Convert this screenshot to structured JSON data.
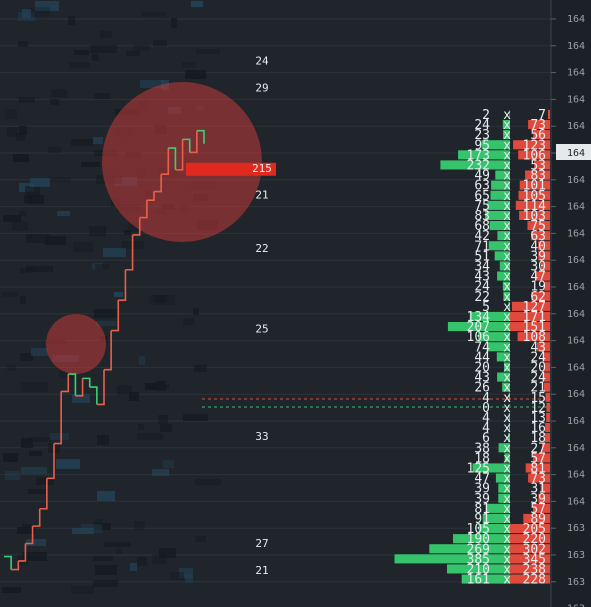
{
  "chart_data": {
    "type": "line",
    "description_note": "",
    "price_axis": {
      "labels": [
        "164",
        "164",
        "164",
        "164",
        "164",
        "164",
        "164",
        "164",
        "164",
        "164",
        "164",
        "164",
        "164",
        "164",
        "164",
        "164",
        "164",
        "164",
        "164",
        "163",
        "163",
        "163",
        "163"
      ],
      "highlighted_label": "164",
      "highlighted_row": 5
    },
    "trade_count_labels": [
      {
        "row": 0,
        "text": "24"
      },
      {
        "row": 1,
        "text": "29"
      },
      {
        "row": 4,
        "text": "215",
        "highlight": true
      },
      {
        "row": 5,
        "text": "21"
      },
      {
        "row": 7,
        "text": "22"
      },
      {
        "row": 10,
        "text": "25"
      },
      {
        "row": 14,
        "text": "33"
      },
      {
        "row": 18,
        "text": "27"
      },
      {
        "row": 19,
        "text": "21"
      }
    ],
    "depth_rows": [
      {
        "bid": "2",
        "ask": "7"
      },
      {
        "bid": "24",
        "ask": "73"
      },
      {
        "bid": "23",
        "ask": "56"
      },
      {
        "bid": "95",
        "ask": "123"
      },
      {
        "bid": "173",
        "ask": "106"
      },
      {
        "bid": "232",
        "ask": "53"
      },
      {
        "bid": "49",
        "ask": "83"
      },
      {
        "bid": "63",
        "ask": "101"
      },
      {
        "bid": "65",
        "ask": "105"
      },
      {
        "bid": "75",
        "ask": "114"
      },
      {
        "bid": "83",
        "ask": "103"
      },
      {
        "bid": "68",
        "ask": "75"
      },
      {
        "bid": "42",
        "ask": "63"
      },
      {
        "bid": "71",
        "ask": "40"
      },
      {
        "bid": "51",
        "ask": "39"
      },
      {
        "bid": "34",
        "ask": "30"
      },
      {
        "bid": "43",
        "ask": "47"
      },
      {
        "bid": "24",
        "ask": "19"
      },
      {
        "bid": "22",
        "ask": "62"
      },
      {
        "bid": "5",
        "ask": "127"
      },
      {
        "bid": "134",
        "ask": "171"
      },
      {
        "bid": "207",
        "ask": "151"
      },
      {
        "bid": "106",
        "ask": "108"
      },
      {
        "bid": "74",
        "ask": "43"
      },
      {
        "bid": "44",
        "ask": "24"
      },
      {
        "bid": "20",
        "ask": "20"
      },
      {
        "bid": "43",
        "ask": "24"
      },
      {
        "bid": "26",
        "ask": "21"
      },
      {
        "bid": "4",
        "ask": "15"
      },
      {
        "bid": "0",
        "ask": "12"
      },
      {
        "bid": "4",
        "ask": "13"
      },
      {
        "bid": "4",
        "ask": "16"
      },
      {
        "bid": "6",
        "ask": "18"
      },
      {
        "bid": "38",
        "ask": "27"
      },
      {
        "bid": "18",
        "ask": "57"
      },
      {
        "bid": "125",
        "ask": "81"
      },
      {
        "bid": "47",
        "ask": "73"
      },
      {
        "bid": "39",
        "ask": "31"
      },
      {
        "bid": "39",
        "ask": "39"
      },
      {
        "bid": "81",
        "ask": "57"
      },
      {
        "bid": "91",
        "ask": "89"
      },
      {
        "bid": "105",
        "ask": "205"
      },
      {
        "bid": "190",
        "ask": "220"
      },
      {
        "bid": "269",
        "ask": "302"
      },
      {
        "bid": "385",
        "ask": "345"
      },
      {
        "bid": "210",
        "ask": "238"
      },
      {
        "bid": "161",
        "ask": "228"
      }
    ],
    "price_path": [
      [
        0,
        2.0
      ],
      [
        1,
        1.4
      ],
      [
        2,
        1.8
      ],
      [
        3,
        2.6
      ],
      [
        4,
        3.4
      ],
      [
        5,
        4.2
      ],
      [
        6,
        5.6
      ],
      [
        7,
        7.2
      ],
      [
        8,
        9.6
      ],
      [
        9,
        10.4
      ],
      [
        10,
        9.4
      ],
      [
        11,
        10.2
      ],
      [
        12,
        9.8
      ],
      [
        13,
        9.0
      ],
      [
        14,
        10.6
      ],
      [
        15,
        12.4
      ],
      [
        16,
        13.8
      ],
      [
        17,
        15.2
      ],
      [
        18,
        16.8
      ],
      [
        19,
        17.6
      ],
      [
        20,
        18.4
      ],
      [
        21,
        18.8
      ],
      [
        22,
        19.6
      ],
      [
        23,
        20.8
      ],
      [
        24,
        19.8
      ],
      [
        25,
        21.2
      ],
      [
        26,
        20.6
      ],
      [
        27,
        21.6
      ],
      [
        28,
        21.0
      ]
    ],
    "colors": {
      "up": "#e8604c",
      "down": "#3ecf73",
      "bid": "#35c46b",
      "ask": "#e04a3c",
      "highlight": "#e02a1e",
      "circle": "#c23a3a"
    }
  }
}
